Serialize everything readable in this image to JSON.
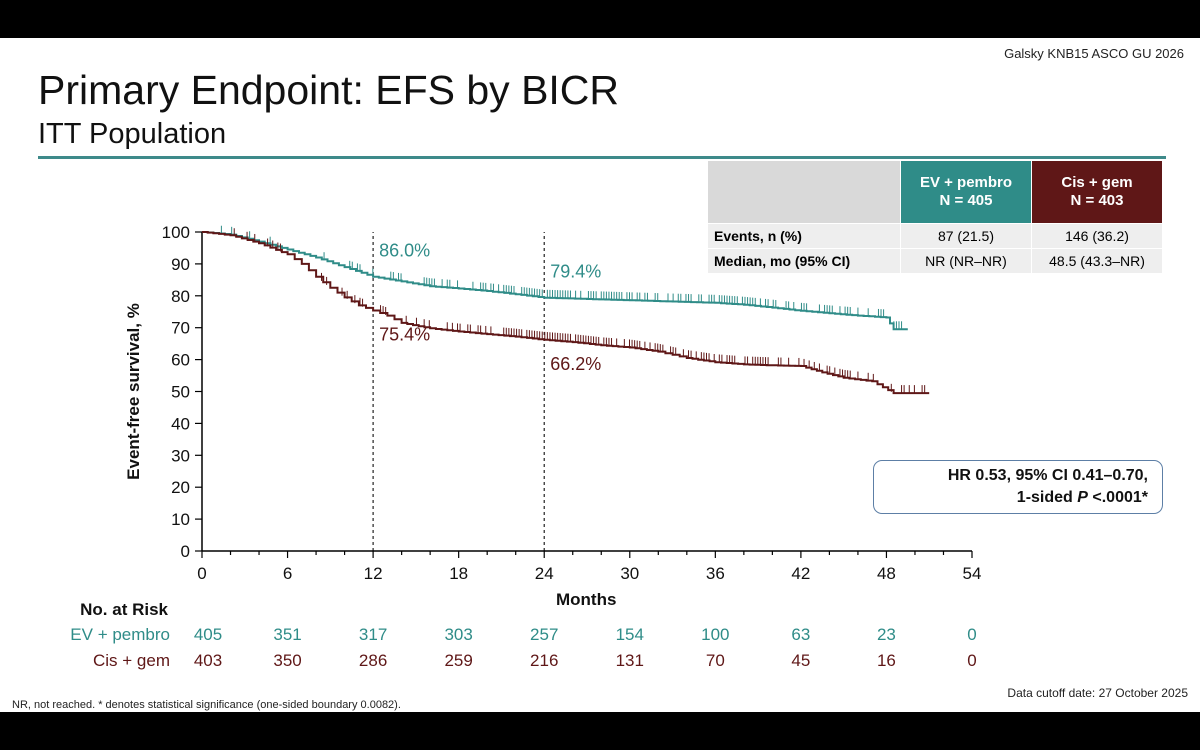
{
  "header": {
    "citation": "Galsky KNB15 ASCO GU 2026",
    "title": "Primary Endpoint: EFS by BICR",
    "subtitle": "ITT Population"
  },
  "summary_table": {
    "ev_head_line1": "EV + pembro",
    "ev_head_line2": "N = 405",
    "cg_head_line1": "Cis + gem",
    "cg_head_line2": "N = 403",
    "events_label": "Events, n (%)",
    "events_ev": "87 (21.5)",
    "events_cg": "146 (36.2)",
    "median_label": "Median, mo (95% CI)",
    "median_ev": "NR (NR–NR)",
    "median_cg": "48.5 (43.3–NR)"
  },
  "hr_box": {
    "line1": "HR 0.53, 95% CI 0.41–0.70,",
    "line2_prefix": "1-sided ",
    "line2_p": "P",
    "line2_suffix": " <.0001*"
  },
  "footnote": "NR, not reached. * denotes statistical significance (one-sided boundary 0.0082).",
  "cutoff": "Data cutoff date: 27 October 2025",
  "colors": {
    "ev": "#2f8c88",
    "cg": "#5f1717",
    "rule": "#3e8a8a"
  },
  "chart_data": {
    "type": "line",
    "ylabel": "Event-free survival, %",
    "xlabel": "Months",
    "xlim": [
      0,
      54
    ],
    "ylim": [
      0,
      100
    ],
    "xticks": [
      0,
      6,
      12,
      18,
      24,
      30,
      36,
      42,
      48,
      54
    ],
    "yticks": [
      0,
      10,
      20,
      30,
      40,
      50,
      60,
      70,
      80,
      90,
      100
    ],
    "reference_lines": [
      12,
      24
    ],
    "annotations": [
      {
        "text": "86.0%",
        "series": "EV + pembro",
        "x": 12,
        "y": 86.0
      },
      {
        "text": "79.4%",
        "series": "EV + pembro",
        "x": 24,
        "y": 79.4
      },
      {
        "text": "75.4%",
        "series": "Cis + gem",
        "x": 12,
        "y": 75.4
      },
      {
        "text": "66.2%",
        "series": "Cis + gem",
        "x": 24,
        "y": 66.2
      }
    ],
    "series": [
      {
        "name": "EV + pembro",
        "x": [
          0,
          2,
          4,
          6,
          8,
          10,
          12,
          14,
          16,
          18,
          20,
          22,
          24,
          27,
          30,
          33,
          36,
          38,
          40,
          42,
          44,
          46,
          48,
          48.5,
          49.5
        ],
        "y": [
          100,
          99.2,
          97,
          94.5,
          92,
          89,
          86.0,
          84.5,
          83,
          82.3,
          81.5,
          80.5,
          79.4,
          79,
          78.6,
          78.2,
          77.8,
          77.2,
          76.3,
          75.3,
          74.5,
          73.8,
          73.2,
          69.5,
          69.5
        ]
      },
      {
        "name": "Cis + gem",
        "x": [
          0,
          2,
          4,
          6,
          7,
          8,
          9,
          10,
          11,
          12,
          13,
          14,
          16,
          18,
          20,
          22,
          24,
          26,
          28,
          30,
          32,
          33,
          34,
          36,
          38,
          40,
          42,
          43.5,
          45,
          47,
          48.5,
          49.5,
          51
        ],
        "y": [
          100,
          99,
          96.5,
          93,
          90,
          86,
          82.5,
          79.5,
          77,
          75.4,
          73.8,
          71.5,
          69.8,
          68.8,
          68,
          67.2,
          66.2,
          65.5,
          64.5,
          63.8,
          62.5,
          61.5,
          60.5,
          59.2,
          58.5,
          58.2,
          58,
          56,
          54.3,
          53.2,
          49.5,
          49.5,
          49.5
        ]
      }
    ],
    "risk_table": {
      "title": "No. at Risk",
      "times": [
        0,
        6,
        12,
        18,
        24,
        30,
        36,
        42,
        48,
        54
      ],
      "rows": [
        {
          "name": "EV + pembro",
          "values": [
            405,
            351,
            317,
            303,
            257,
            154,
            100,
            63,
            23,
            0
          ]
        },
        {
          "name": "Cis + gem",
          "values": [
            403,
            350,
            286,
            259,
            216,
            131,
            70,
            45,
            16,
            0
          ]
        }
      ]
    }
  }
}
